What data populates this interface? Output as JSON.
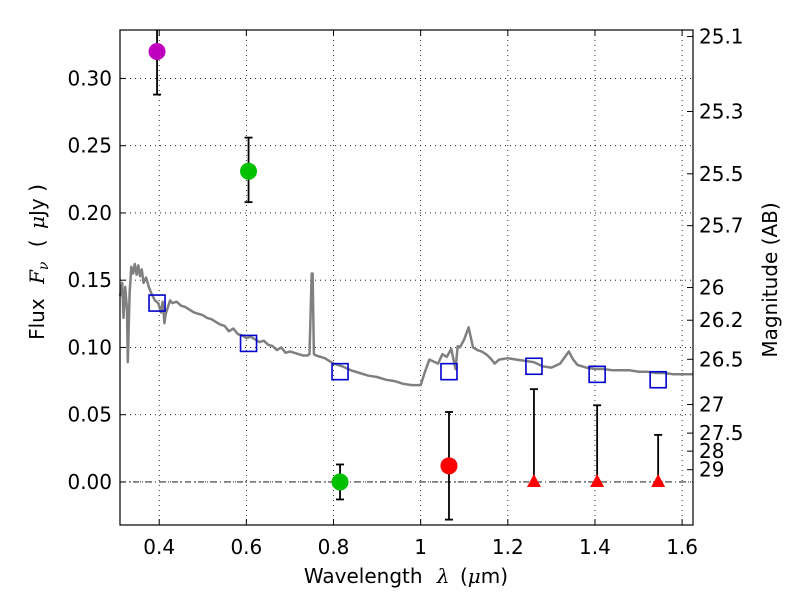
{
  "chart_data": {
    "type": "scatter",
    "xlabel_text": "Wavelength",
    "xlabel_symbol": "λ",
    "xlabel_unit_prefix": "(",
    "xlabel_unit_mu": "μ",
    "xlabel_unit_rest": "m)",
    "ylabel_text": "Flux",
    "ylabel_symbol": "F",
    "ylabel_symbol_sub": "ν",
    "ylabel_unit_prefix": "(",
    "ylabel_unit_mu": "μ",
    "ylabel_unit_rest": "Jy )",
    "y2label": "Magnitude (AB)",
    "xlim": [
      0.31,
      1.625
    ],
    "ylim": [
      -0.032,
      0.336
    ],
    "xticks": [
      {
        "value": 0.4,
        "label": "0.4"
      },
      {
        "value": 0.6,
        "label": "0.6"
      },
      {
        "value": 0.8,
        "label": "0.8"
      },
      {
        "value": 1.0,
        "label": "1"
      },
      {
        "value": 1.2,
        "label": "1.2"
      },
      {
        "value": 1.4,
        "label": "1.4"
      },
      {
        "value": 1.6,
        "label": "1.6"
      }
    ],
    "yticks": [
      {
        "value": 0.0,
        "label": "0.00"
      },
      {
        "value": 0.05,
        "label": "0.05"
      },
      {
        "value": 0.1,
        "label": "0.10"
      },
      {
        "value": 0.15,
        "label": "0.15"
      },
      {
        "value": 0.2,
        "label": "0.20"
      },
      {
        "value": 0.25,
        "label": "0.25"
      },
      {
        "value": 0.3,
        "label": "0.30"
      }
    ],
    "y2ticks": [
      {
        "mag": 25.1,
        "label": "25.1"
      },
      {
        "mag": 25.3,
        "label": "25.3"
      },
      {
        "mag": 25.5,
        "label": "25.5"
      },
      {
        "mag": 25.7,
        "label": "25.7"
      },
      {
        "mag": 26,
        "label": "26"
      },
      {
        "mag": 26.2,
        "label": "26.2"
      },
      {
        "mag": 26.5,
        "label": "26.5"
      },
      {
        "mag": 27,
        "label": "27"
      },
      {
        "mag": 27.5,
        "label": "27.5"
      },
      {
        "mag": 28,
        "label": "28"
      },
      {
        "mag": 29,
        "label": "29"
      }
    ],
    "grid": true,
    "colors": {
      "model": "#808080",
      "model_points": "#0000cc",
      "violet": "#bf00bf",
      "green": "#00c000",
      "red": "#ff0000",
      "errorbar": "#000000",
      "zero_line": "#000000"
    },
    "model_spectrum": [
      [
        0.31,
        0.138
      ],
      [
        0.315,
        0.148
      ],
      [
        0.318,
        0.122
      ],
      [
        0.322,
        0.145
      ],
      [
        0.326,
        0.128
      ],
      [
        0.328,
        0.089
      ],
      [
        0.332,
        0.14
      ],
      [
        0.336,
        0.16
      ],
      [
        0.34,
        0.155
      ],
      [
        0.344,
        0.162
      ],
      [
        0.348,
        0.154
      ],
      [
        0.352,
        0.161
      ],
      [
        0.356,
        0.153
      ],
      [
        0.36,
        0.158
      ],
      [
        0.364,
        0.148
      ],
      [
        0.37,
        0.152
      ],
      [
        0.376,
        0.145
      ],
      [
        0.382,
        0.14
      ],
      [
        0.39,
        0.135
      ],
      [
        0.398,
        0.133
      ],
      [
        0.404,
        0.126
      ],
      [
        0.408,
        0.134
      ],
      [
        0.412,
        0.118
      ],
      [
        0.415,
        0.125
      ],
      [
        0.42,
        0.13
      ],
      [
        0.425,
        0.135
      ],
      [
        0.43,
        0.133
      ],
      [
        0.44,
        0.134
      ],
      [
        0.45,
        0.131
      ],
      [
        0.46,
        0.13
      ],
      [
        0.47,
        0.128
      ],
      [
        0.48,
        0.126
      ],
      [
        0.49,
        0.125
      ],
      [
        0.5,
        0.124
      ],
      [
        0.51,
        0.122
      ],
      [
        0.52,
        0.121
      ],
      [
        0.53,
        0.119
      ],
      [
        0.54,
        0.117
      ],
      [
        0.55,
        0.116
      ],
      [
        0.56,
        0.112
      ],
      [
        0.57,
        0.114
      ],
      [
        0.58,
        0.11
      ],
      [
        0.59,
        0.109
      ],
      [
        0.6,
        0.107
      ],
      [
        0.61,
        0.108
      ],
      [
        0.62,
        0.106
      ],
      [
        0.63,
        0.104
      ],
      [
        0.64,
        0.105
      ],
      [
        0.65,
        0.102
      ],
      [
        0.66,
        0.101
      ],
      [
        0.67,
        0.098
      ],
      [
        0.68,
        0.1
      ],
      [
        0.69,
        0.096
      ],
      [
        0.7,
        0.097
      ],
      [
        0.71,
        0.096
      ],
      [
        0.72,
        0.095
      ],
      [
        0.73,
        0.094
      ],
      [
        0.74,
        0.094
      ],
      [
        0.745,
        0.095
      ],
      [
        0.75,
        0.155
      ],
      [
        0.752,
        0.155
      ],
      [
        0.755,
        0.095
      ],
      [
        0.76,
        0.094
      ],
      [
        0.78,
        0.092
      ],
      [
        0.8,
        0.088
      ],
      [
        0.82,
        0.086
      ],
      [
        0.84,
        0.083
      ],
      [
        0.86,
        0.081
      ],
      [
        0.88,
        0.079
      ],
      [
        0.9,
        0.078
      ],
      [
        0.92,
        0.076
      ],
      [
        0.94,
        0.075
      ],
      [
        0.96,
        0.073
      ],
      [
        0.98,
        0.072
      ],
      [
        1.0,
        0.072
      ],
      [
        1.01,
        0.082
      ],
      [
        1.02,
        0.091
      ],
      [
        1.04,
        0.088
      ],
      [
        1.05,
        0.095
      ],
      [
        1.06,
        0.093
      ],
      [
        1.07,
        0.099
      ],
      [
        1.08,
        0.084
      ],
      [
        1.085,
        0.101
      ],
      [
        1.09,
        0.1
      ],
      [
        1.1,
        0.106
      ],
      [
        1.11,
        0.115
      ],
      [
        1.12,
        0.1
      ],
      [
        1.13,
        0.098
      ],
      [
        1.14,
        0.097
      ],
      [
        1.15,
        0.095
      ],
      [
        1.16,
        0.092
      ],
      [
        1.17,
        0.088
      ],
      [
        1.18,
        0.091
      ],
      [
        1.2,
        0.092
      ],
      [
        1.22,
        0.091
      ],
      [
        1.24,
        0.09
      ],
      [
        1.26,
        0.089
      ],
      [
        1.28,
        0.086
      ],
      [
        1.3,
        0.085
      ],
      [
        1.32,
        0.088
      ],
      [
        1.34,
        0.097
      ],
      [
        1.35,
        0.091
      ],
      [
        1.36,
        0.087
      ],
      [
        1.38,
        0.085
      ],
      [
        1.4,
        0.084
      ],
      [
        1.42,
        0.084
      ],
      [
        1.44,
        0.083
      ],
      [
        1.46,
        0.083
      ],
      [
        1.48,
        0.083
      ],
      [
        1.5,
        0.082
      ],
      [
        1.52,
        0.082
      ],
      [
        1.54,
        0.081
      ],
      [
        1.56,
        0.081
      ],
      [
        1.58,
        0.08
      ],
      [
        1.6,
        0.08
      ],
      [
        1.625,
        0.08
      ]
    ],
    "model_points": [
      {
        "x": 0.395,
        "y": 0.133
      },
      {
        "x": 0.605,
        "y": 0.103
      },
      {
        "x": 0.815,
        "y": 0.082
      },
      {
        "x": 1.065,
        "y": 0.082
      },
      {
        "x": 1.26,
        "y": 0.086
      },
      {
        "x": 1.405,
        "y": 0.08
      },
      {
        "x": 1.545,
        "y": 0.076
      }
    ],
    "observations": [
      {
        "x": 0.395,
        "y": 0.32,
        "err_low": 0.288,
        "err_high": 0.336,
        "marker": "circle",
        "color": "violet"
      },
      {
        "x": 0.605,
        "y": 0.231,
        "err_low": 0.208,
        "err_high": 0.256,
        "marker": "circle",
        "color": "green"
      },
      {
        "x": 0.815,
        "y": 0.0,
        "err_low": -0.013,
        "err_high": 0.013,
        "marker": "circle",
        "color": "green"
      },
      {
        "x": 1.065,
        "y": 0.012,
        "err_low": -0.028,
        "err_high": 0.052,
        "marker": "circle",
        "color": "red"
      },
      {
        "x": 1.26,
        "y": 0.0,
        "err_low": 0.0,
        "err_high": 0.069,
        "marker": "triangle",
        "color": "red"
      },
      {
        "x": 1.405,
        "y": 0.0,
        "err_low": 0.0,
        "err_high": 0.057,
        "marker": "triangle",
        "color": "red"
      },
      {
        "x": 1.545,
        "y": 0.0,
        "err_low": 0.0,
        "err_high": 0.035,
        "marker": "triangle",
        "color": "red"
      }
    ]
  }
}
